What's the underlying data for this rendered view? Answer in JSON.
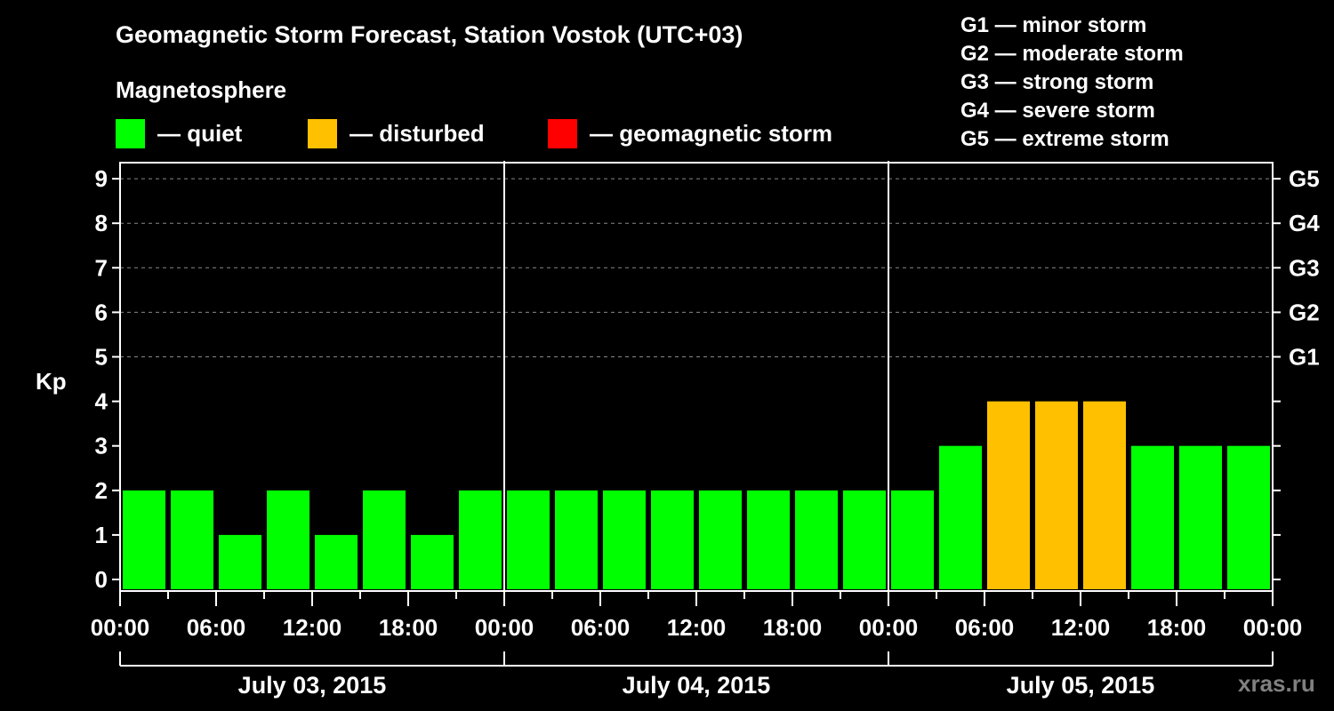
{
  "title": "Geomagnetic Storm Forecast, Station Vostok (UTC+03)",
  "legend": {
    "heading": "Magnetosphere",
    "items": [
      {
        "label": "— quiet",
        "color": "#00ff00"
      },
      {
        "label": "— disturbed",
        "color": "#ffc000"
      },
      {
        "label": "— geomagnetic storm",
        "color": "#ff0000"
      }
    ]
  },
  "storm_scale": [
    "G1 — minor storm",
    "G2 — moderate storm",
    "G3 — strong storm",
    "G4 — severe storm",
    "G5 — extreme storm"
  ],
  "watermark": "xras.ru",
  "chart_data": {
    "type": "bar",
    "title": "Geomagnetic Storm Forecast, Station Vostok (UTC+03)",
    "xlabel": "",
    "ylabel": "Kp",
    "ylim": [
      0,
      9
    ],
    "yticks": [
      0,
      1,
      2,
      3,
      4,
      5,
      6,
      7,
      8,
      9
    ],
    "y2ticks": [
      {
        "value": 5,
        "label": "G1"
      },
      {
        "value": 6,
        "label": "G2"
      },
      {
        "value": 7,
        "label": "G3"
      },
      {
        "value": 8,
        "label": "G4"
      },
      {
        "value": 9,
        "label": "G5"
      }
    ],
    "grid": "dashed horizontal at Kp 5-9",
    "xtick_labels": [
      "00:00",
      "06:00",
      "12:00",
      "18:00",
      "00:00",
      "06:00",
      "12:00",
      "18:00",
      "00:00",
      "06:00",
      "12:00",
      "18:00",
      "00:00"
    ],
    "days": [
      "July 03, 2015",
      "July 04, 2015",
      "July 05, 2015"
    ],
    "interval_hours": 3,
    "categories": [
      "Jul03 00-03",
      "Jul03 03-06",
      "Jul03 06-09",
      "Jul03 09-12",
      "Jul03 12-15",
      "Jul03 15-18",
      "Jul03 18-21",
      "Jul03 21-24",
      "Jul04 00-03",
      "Jul04 03-06",
      "Jul04 06-09",
      "Jul04 09-12",
      "Jul04 12-15",
      "Jul04 15-18",
      "Jul04 18-21",
      "Jul04 21-24",
      "Jul05 00-03",
      "Jul05 03-06",
      "Jul05 06-09",
      "Jul05 09-12",
      "Jul05 12-15",
      "Jul05 15-18",
      "Jul05 18-21",
      "Jul05 21-24"
    ],
    "values": [
      2,
      2,
      1,
      2,
      1,
      2,
      1,
      2,
      2,
      2,
      2,
      2,
      2,
      2,
      2,
      2,
      2,
      3,
      4,
      4,
      4,
      3,
      3,
      3
    ],
    "status": [
      "quiet",
      "quiet",
      "quiet",
      "quiet",
      "quiet",
      "quiet",
      "quiet",
      "quiet",
      "quiet",
      "quiet",
      "quiet",
      "quiet",
      "quiet",
      "quiet",
      "quiet",
      "quiet",
      "quiet",
      "quiet",
      "disturbed",
      "disturbed",
      "disturbed",
      "quiet",
      "quiet",
      "quiet"
    ],
    "colors": {
      "quiet": "#00ff00",
      "disturbed": "#ffc000",
      "storm": "#ff0000"
    }
  }
}
